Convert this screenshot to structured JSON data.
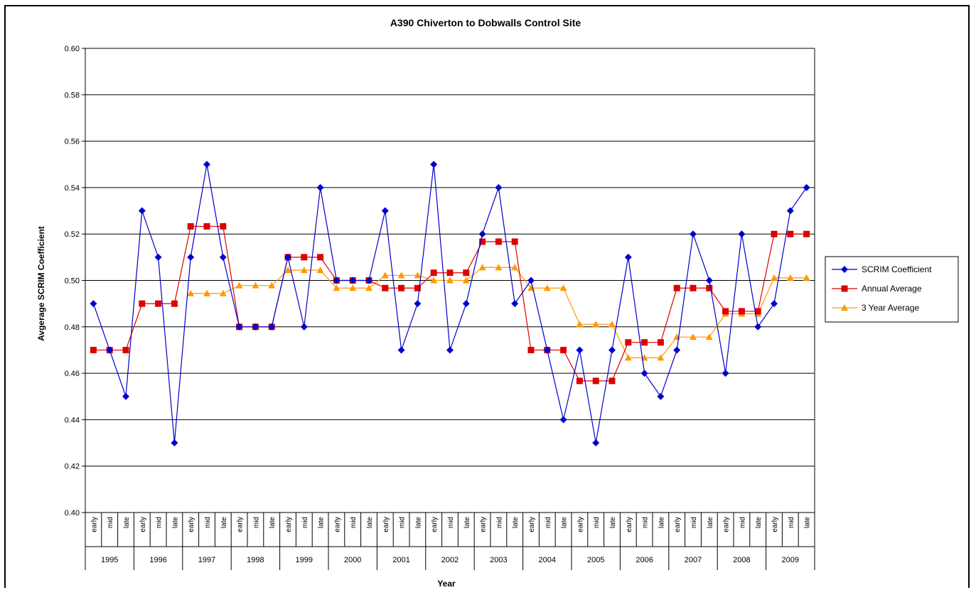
{
  "chart_data": {
    "type": "line",
    "title": "A390 Chiverton to Dobwalls Control Site",
    "xlabel": "Year",
    "ylabel": "Avgerage SCRIM Coefficient",
    "ylim": [
      0.4,
      0.6
    ],
    "yticks": [
      "0.40",
      "0.42",
      "0.44",
      "0.46",
      "0.48",
      "0.50",
      "0.52",
      "0.54",
      "0.56",
      "0.58",
      "0.60"
    ],
    "grid": "horizontal",
    "legend_position": "right",
    "years": [
      "1995",
      "1996",
      "1997",
      "1998",
      "1999",
      "2000",
      "2001",
      "2002",
      "2003",
      "2004",
      "2005",
      "2006",
      "2007",
      "2008",
      "2009"
    ],
    "periods": [
      "early",
      "mid",
      "late"
    ],
    "series": [
      {
        "name": "SCRIM Coefficient",
        "color": "#0000cc",
        "marker": "diamond",
        "values": [
          0.49,
          0.47,
          0.45,
          0.53,
          0.51,
          0.43,
          0.51,
          0.55,
          0.51,
          0.48,
          0.48,
          0.48,
          0.51,
          0.48,
          0.54,
          0.5,
          0.5,
          0.5,
          0.53,
          0.47,
          0.49,
          0.55,
          0.47,
          0.49,
          0.52,
          0.54,
          0.49,
          0.5,
          0.47,
          0.44,
          0.47,
          0.43,
          0.47,
          0.51,
          0.46,
          0.45,
          0.47,
          0.52,
          0.5,
          0.46,
          0.52,
          0.48,
          0.49,
          0.53,
          0.54
        ]
      },
      {
        "name": "Annual Average",
        "color": "#dd0000",
        "marker": "square",
        "values": [
          0.47,
          0.47,
          0.47,
          0.49,
          0.49,
          0.49,
          0.5233,
          0.5233,
          0.5233,
          0.48,
          0.48,
          0.48,
          0.51,
          0.51,
          0.51,
          0.5,
          0.5,
          0.5,
          0.4967,
          0.4967,
          0.4967,
          0.5033,
          0.5033,
          0.5033,
          0.5167,
          0.5167,
          0.5167,
          0.47,
          0.47,
          0.47,
          0.4567,
          0.4567,
          0.4567,
          0.4733,
          0.4733,
          0.4733,
          0.4967,
          0.4967,
          0.4967,
          0.4867,
          0.4867,
          0.4867,
          0.52,
          0.52,
          0.52
        ]
      },
      {
        "name": "3 Year Average",
        "color": "#ff9900",
        "marker": "triangle",
        "start_index": 6,
        "values": [
          0.4944,
          0.4944,
          0.4944,
          0.4978,
          0.4978,
          0.4978,
          0.5044,
          0.5044,
          0.5044,
          0.4967,
          0.4967,
          0.4967,
          0.5022,
          0.5022,
          0.5022,
          0.5,
          0.5,
          0.5,
          0.5056,
          0.5056,
          0.5056,
          0.4967,
          0.4967,
          0.4967,
          0.4811,
          0.4811,
          0.4811,
          0.4667,
          0.4667,
          0.4667,
          0.4756,
          0.4756,
          0.4756,
          0.4856,
          0.4856,
          0.4856,
          0.5011,
          0.5011,
          0.5011
        ]
      }
    ]
  }
}
